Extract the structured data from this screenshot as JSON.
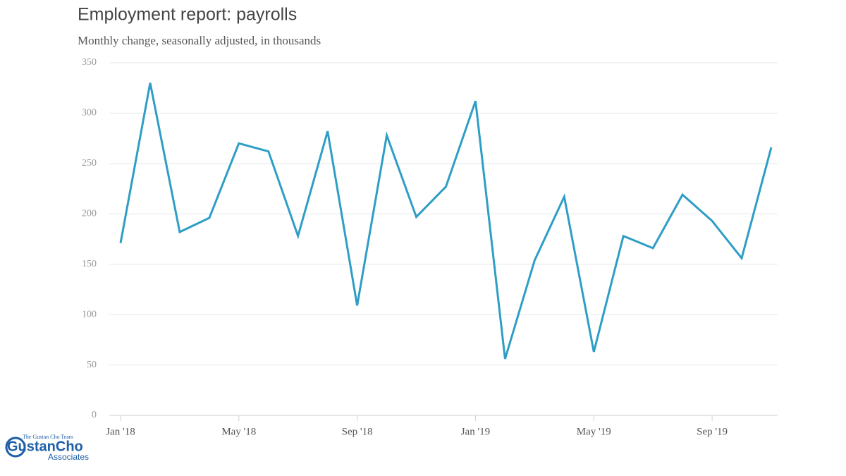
{
  "chart_data": {
    "type": "line",
    "title": "Employment report: payrolls",
    "subtitle": "Monthly change, seasonally adjusted, in thousands",
    "categories": [
      "Jan '18",
      null,
      null,
      null,
      "May '18",
      null,
      null,
      null,
      "Sep '18",
      null,
      null,
      null,
      "Jan '19",
      null,
      null,
      null,
      "May '19",
      null,
      null,
      null,
      "Sep '19",
      null,
      null
    ],
    "series": [
      {
        "name": "Payrolls",
        "color": "#2e9ec6",
        "values": [
          171,
          330,
          182,
          196,
          270,
          262,
          178,
          282,
          109,
          278,
          197,
          227,
          312,
          56,
          154,
          217,
          63,
          178,
          166,
          219,
          193,
          156,
          266
        ]
      }
    ],
    "ylim": [
      0,
      350
    ],
    "yticks": [
      0,
      50,
      100,
      150,
      200,
      250,
      300,
      350
    ],
    "grid": true
  },
  "logo": {
    "tagline": "The Gustan Cho Team",
    "name": "GustanCho",
    "sub": "Associates"
  }
}
